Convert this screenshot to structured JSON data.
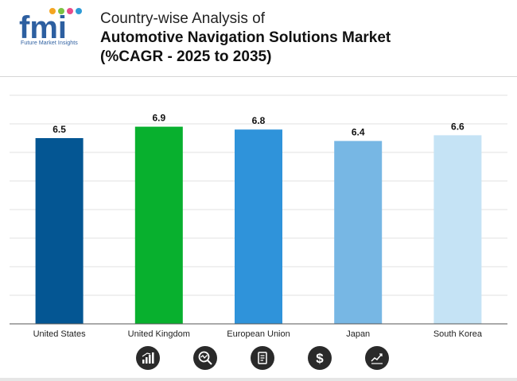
{
  "header": {
    "brand": "fmi",
    "tagline": "Future Market Insights",
    "title_line1": "Country-wise Analysis of",
    "title_line2": "Automotive Navigation Solutions Market",
    "title_line3": "(%CAGR - 2025 to 2035)"
  },
  "colors": {
    "bars": [
      "#045693",
      "#08b02e",
      "#2f93da",
      "#77b7e4",
      "#c5e3f5"
    ],
    "grid": "#e2e2e2",
    "axis": "#555555",
    "icon_bg": "#2a2a2a"
  },
  "chart_data": {
    "type": "bar",
    "title": "Country-wise Analysis of Automotive Navigation Solutions Market (%CAGR - 2025 to 2035)",
    "categories": [
      "United States",
      "United Kingdom",
      "European Union",
      "Japan",
      "South Korea"
    ],
    "values": [
      6.5,
      6.9,
      6.8,
      6.4,
      6.6
    ],
    "value_labels": [
      "6.5",
      "6.9",
      "6.8",
      "6.4",
      "6.6"
    ],
    "xlabel": "",
    "ylabel": "",
    "ylim": [
      0,
      8
    ],
    "grid": true,
    "legend": "none"
  },
  "footer_icons": [
    "bar-chart-icon",
    "magnifier-trend-icon",
    "document-icon",
    "dollar-icon",
    "line-chart-icon"
  ]
}
